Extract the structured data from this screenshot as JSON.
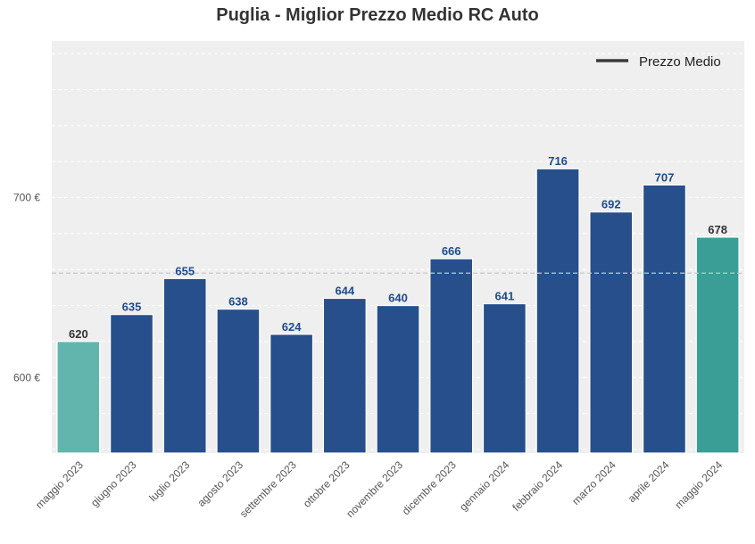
{
  "chart_data": {
    "type": "bar",
    "title": "Puglia - Miglior Prezzo Medio RC Auto",
    "categories": [
      "maggio 2023",
      "giugno 2023",
      "luglio 2023",
      "agosto 2023",
      "settembre 2023",
      "ottobre 2023",
      "novembre 2023",
      "dicembre 2023",
      "gennaio 2024",
      "febbraio 2024",
      "marzo 2024",
      "aprile 2024",
      "maggio 2024"
    ],
    "values": [
      620,
      635,
      655,
      638,
      624,
      644,
      640,
      666,
      641,
      716,
      692,
      707,
      678
    ],
    "data_labels": [
      "620",
      "635",
      "655",
      "638",
      "624",
      "644",
      "640",
      "666",
      "641",
      "716",
      "692",
      "707",
      "678"
    ],
    "bar_colors": [
      "#62b5ad",
      "#264f8c",
      "#264f8c",
      "#264f8c",
      "#264f8c",
      "#264f8c",
      "#264f8c",
      "#264f8c",
      "#264f8c",
      "#264f8c",
      "#264f8c",
      "#264f8c",
      "#3a9e96"
    ],
    "label_colors": [
      "#333333",
      "#1e4b8f",
      "#1e4b8f",
      "#1e4b8f",
      "#1e4b8f",
      "#1e4b8f",
      "#1e4b8f",
      "#1e4b8f",
      "#1e4b8f",
      "#1e4b8f",
      "#1e4b8f",
      "#1e4b8f",
      "#333333"
    ],
    "yticks": [
      600,
      700
    ],
    "ytick_labels": [
      "600 €",
      "700 €"
    ],
    "ylim": [
      558,
      787
    ],
    "average_line": 658,
    "legend": {
      "label": "Prezzo Medio",
      "position": "top-right"
    },
    "xlabel": "",
    "ylabel": "",
    "grid": true,
    "plot_background": "#efefef"
  }
}
